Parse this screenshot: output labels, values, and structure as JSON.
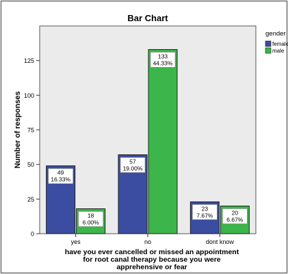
{
  "chart_data": {
    "type": "bar",
    "title": "Bar Chart",
    "xlabel": "have you ever cancelled or missed an appointment for root canal therapy because you were apprehensive or fear",
    "xlabel_lines": [
      "have you ever cancelled or missed an appointment",
      "for root canal therapy because you were",
      "apprehensive or fear"
    ],
    "ylabel": "Number of responses",
    "ylim": [
      0,
      150
    ],
    "yticks": [
      0,
      25,
      50,
      75,
      100,
      125
    ],
    "ytick_labels": [
      "0",
      "25",
      "50",
      "75",
      "100",
      "125"
    ],
    "categories": [
      "yes",
      "no",
      "dont know"
    ],
    "series": [
      {
        "name": "female",
        "color": "#3a4da0",
        "values": [
          49,
          57,
          23
        ],
        "value_labels": [
          "49",
          "57",
          "23"
        ],
        "percent_labels": [
          "16.33%",
          "19.00%",
          "7.67%"
        ]
      },
      {
        "name": "male",
        "color": "#3cb54a",
        "values": [
          18,
          133,
          20
        ],
        "value_labels": [
          "18",
          "133",
          "20"
        ],
        "percent_labels": [
          "6.00%",
          "44.33%",
          "6.67%"
        ]
      }
    ],
    "legend_title": "gender",
    "legend_placement": "right",
    "grid": false,
    "plot_background": "#ebebeb"
  }
}
